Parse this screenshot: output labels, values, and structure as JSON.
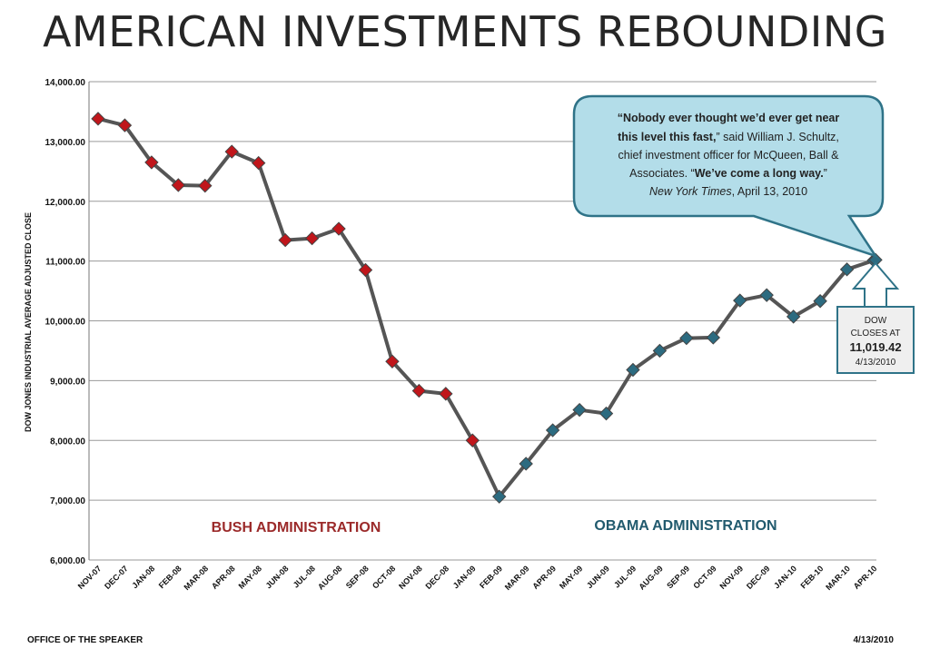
{
  "title": "AMERICAN INVESTMENTS REBOUNDING",
  "footer": {
    "left": "OFFICE OF THE SPEAKER",
    "right": "4/13/2010"
  },
  "colors": {
    "bush": "#c0161b",
    "obama": "#2c6b80",
    "line": "#555555",
    "bush_label": "#9b2a2a",
    "obama_label": "#215a6e",
    "callout_fill": "#b3dde9",
    "callout_stroke": "#2f7388"
  },
  "annotations": {
    "bush_label": "BUSH ADMINISTRATION",
    "obama_label": "OBAMA ADMINISTRATION",
    "quote": {
      "line1_bold": "“Nobody ever thought we’d ever get near",
      "line2_bold": "this level this fast,",
      "line2_rest": "” said William J. Schultz,",
      "line3": "chief investment  officer for McQueen,  Ball &",
      "line4_pre": "Associates. “",
      "line4_bold": "We’ve come a long way.",
      "line4_post": "”",
      "line5_italic": "New York Times",
      "line5_rest": ", April 13, 2010"
    },
    "dow_box": {
      "line1": "DOW",
      "line2": "CLOSES AT",
      "value": "11,019.42",
      "date": "4/13/2010"
    }
  },
  "chart_data": {
    "type": "line",
    "title": "AMERICAN INVESTMENTS REBOUNDING",
    "xlabel": "",
    "ylabel": "DOW JONES INDUSTRIAL AVERAGE ADJUSTED  CLOSE",
    "ylim": [
      6000,
      14000
    ],
    "yticks": [
      6000,
      7000,
      8000,
      9000,
      10000,
      11000,
      12000,
      13000,
      14000
    ],
    "ytick_labels": [
      "6,000.00",
      "7,000.00",
      "8,000.00",
      "9,000.00",
      "10,000.00",
      "11,000.00",
      "12,000.00",
      "13,000.00",
      "14,000.00"
    ],
    "grid": true,
    "categories": [
      "NOV-07",
      "DEC-07",
      "JAN-08",
      "FEB-08",
      "MAR-08",
      "APR-08",
      "MAY-08",
      "JUN-08",
      "JUL-08",
      "AUG-08",
      "SEP-08",
      "OCT-08",
      "NOV-08",
      "DEC-08",
      "JAN-09",
      "FEB-09",
      "MAR-09",
      "APR-09",
      "MAY-09",
      "JUN-09",
      "JUL-09",
      "AUG-09",
      "SEP-09",
      "OCT-09",
      "NOV-09",
      "DEC-09",
      "JAN-10",
      "FEB-10",
      "MAR-10",
      "APR-10"
    ],
    "values": [
      13380,
      13270,
      12650,
      12270,
      12260,
      12830,
      12640,
      11350,
      11380,
      11540,
      10850,
      9320,
      8830,
      8780,
      8000,
      7060,
      7610,
      8170,
      8510,
      8450,
      9180,
      9500,
      9710,
      9720,
      10340,
      10430,
      10070,
      10330,
      10860,
      11010
    ],
    "extra_point": {
      "label": "4/13/2010",
      "value": 11019.42
    },
    "series_split": {
      "bush_count": 15,
      "bush_color": "#c0161b",
      "obama_color": "#2c6b80"
    }
  }
}
